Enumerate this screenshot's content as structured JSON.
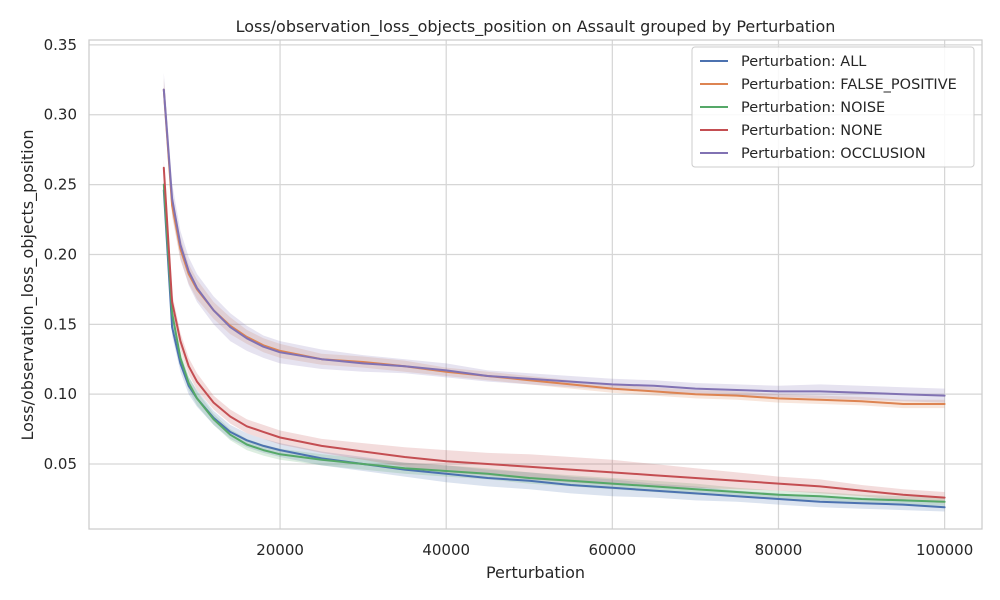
{
  "chart_data": {
    "type": "line",
    "title": "Loss/observation_loss_objects_position on Assault grouped by Perturbation",
    "xlabel": "Perturbation",
    "ylabel": "Loss/observation_loss_objects_position",
    "xlim": [
      -3000,
      104500
    ],
    "ylim": [
      0.0035,
      0.3535
    ],
    "xticks": [
      20000,
      40000,
      60000,
      80000,
      100000
    ],
    "yticks": [
      0.05,
      0.1,
      0.15,
      0.2,
      0.25,
      0.3,
      0.35
    ],
    "ytick_labels": [
      "0.05",
      "0.10",
      "0.15",
      "0.20",
      "0.25",
      "0.30",
      "0.35"
    ],
    "grid": true,
    "legend_position": "top-right",
    "x": [
      6000,
      7000,
      8000,
      9000,
      10000,
      12000,
      14000,
      16000,
      18000,
      20000,
      25000,
      30000,
      35000,
      40000,
      45000,
      50000,
      55000,
      60000,
      65000,
      70000,
      75000,
      80000,
      85000,
      90000,
      95000,
      100000
    ],
    "series": [
      {
        "name": "Perturbation: ALL",
        "color": "#4c72b0",
        "values": [
          0.246,
          0.148,
          0.122,
          0.106,
          0.097,
          0.083,
          0.073,
          0.067,
          0.063,
          0.06,
          0.054,
          0.05,
          0.046,
          0.043,
          0.04,
          0.038,
          0.035,
          0.033,
          0.031,
          0.029,
          0.027,
          0.025,
          0.023,
          0.022,
          0.021,
          0.019
        ],
        "band": [
          0.006,
          0.006,
          0.006,
          0.006,
          0.006,
          0.005,
          0.005,
          0.005,
          0.005,
          0.005,
          0.005,
          0.005,
          0.005,
          0.006,
          0.006,
          0.006,
          0.006,
          0.006,
          0.005,
          0.005,
          0.004,
          0.004,
          0.004,
          0.004,
          0.004,
          0.003
        ]
      },
      {
        "name": "Perturbation: FALSE_POSITIVE",
        "color": "#dd8452",
        "values": [
          0.318,
          0.235,
          0.204,
          0.186,
          0.175,
          0.16,
          0.149,
          0.141,
          0.135,
          0.131,
          0.125,
          0.123,
          0.12,
          0.116,
          0.113,
          0.11,
          0.107,
          0.104,
          0.102,
          0.1,
          0.099,
          0.097,
          0.096,
          0.095,
          0.093,
          0.093
        ],
        "band": [
          0.008,
          0.008,
          0.008,
          0.007,
          0.007,
          0.006,
          0.006,
          0.005,
          0.005,
          0.005,
          0.004,
          0.004,
          0.004,
          0.003,
          0.003,
          0.003,
          0.003,
          0.003,
          0.003,
          0.003,
          0.003,
          0.003,
          0.003,
          0.003,
          0.003,
          0.003
        ]
      },
      {
        "name": "Perturbation: NOISE",
        "color": "#55a868",
        "values": [
          0.25,
          0.158,
          0.126,
          0.108,
          0.097,
          0.082,
          0.071,
          0.064,
          0.06,
          0.057,
          0.053,
          0.05,
          0.047,
          0.045,
          0.043,
          0.04,
          0.038,
          0.036,
          0.034,
          0.032,
          0.03,
          0.028,
          0.027,
          0.025,
          0.024,
          0.023
        ],
        "band": [
          0.005,
          0.005,
          0.005,
          0.005,
          0.005,
          0.004,
          0.004,
          0.004,
          0.004,
          0.004,
          0.004,
          0.004,
          0.004,
          0.004,
          0.004,
          0.004,
          0.004,
          0.004,
          0.004,
          0.004,
          0.003,
          0.003,
          0.003,
          0.003,
          0.003,
          0.003
        ]
      },
      {
        "name": "Perturbation: NONE",
        "color": "#c44e52",
        "values": [
          0.262,
          0.166,
          0.138,
          0.12,
          0.109,
          0.094,
          0.084,
          0.077,
          0.073,
          0.069,
          0.063,
          0.059,
          0.055,
          0.052,
          0.05,
          0.048,
          0.046,
          0.044,
          0.042,
          0.04,
          0.038,
          0.036,
          0.034,
          0.031,
          0.028,
          0.026
        ],
        "band": [
          0.006,
          0.006,
          0.006,
          0.006,
          0.006,
          0.005,
          0.005,
          0.005,
          0.005,
          0.005,
          0.005,
          0.006,
          0.007,
          0.008,
          0.008,
          0.009,
          0.009,
          0.009,
          0.008,
          0.007,
          0.006,
          0.005,
          0.005,
          0.004,
          0.004,
          0.004
        ]
      },
      {
        "name": "Perturbation: OCCLUSION",
        "color": "#8172b3",
        "values": [
          0.318,
          0.24,
          0.207,
          0.188,
          0.176,
          0.16,
          0.148,
          0.14,
          0.134,
          0.13,
          0.125,
          0.122,
          0.12,
          0.117,
          0.113,
          0.111,
          0.109,
          0.107,
          0.106,
          0.104,
          0.103,
          0.102,
          0.102,
          0.101,
          0.1,
          0.099
        ],
        "band": [
          0.012,
          0.011,
          0.01,
          0.01,
          0.01,
          0.01,
          0.01,
          0.009,
          0.008,
          0.008,
          0.007,
          0.006,
          0.005,
          0.005,
          0.004,
          0.004,
          0.004,
          0.004,
          0.004,
          0.004,
          0.004,
          0.004,
          0.005,
          0.005,
          0.005,
          0.005
        ]
      }
    ]
  }
}
